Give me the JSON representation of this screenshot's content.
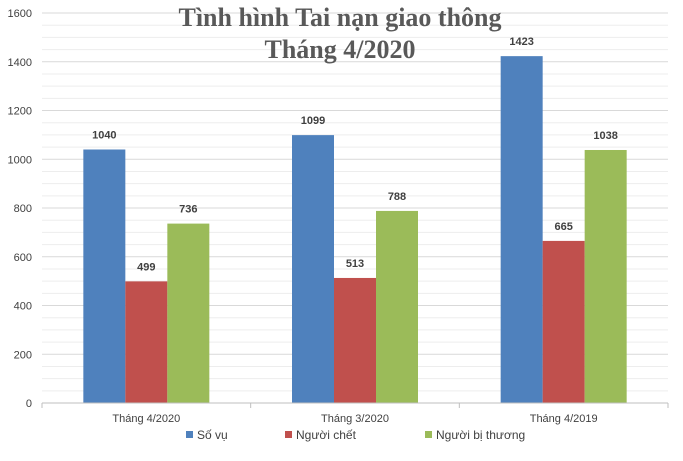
{
  "chart_data": {
    "type": "bar",
    "title_line1": "Tình hình Tai nạn giao thông",
    "title_line2": "Tháng 4/2020",
    "categories": [
      "Tháng 4/2020",
      "Tháng 3/2020",
      "Tháng 4/2019"
    ],
    "series": [
      {
        "name": "Số vụ",
        "color": "#4F81BD",
        "values": [
          1040,
          1099,
          1423
        ]
      },
      {
        "name": "Người chết",
        "color": "#C0504D",
        "values": [
          499,
          513,
          665
        ]
      },
      {
        "name": "Người bị thương",
        "color": "#9BBB59",
        "values": [
          736,
          788,
          1038
        ]
      }
    ],
    "ylim": [
      0,
      1600
    ],
    "yticks": [
      0,
      200,
      400,
      600,
      800,
      1000,
      1200,
      1400,
      1600
    ],
    "grid": true,
    "legend_position": "bottom"
  }
}
